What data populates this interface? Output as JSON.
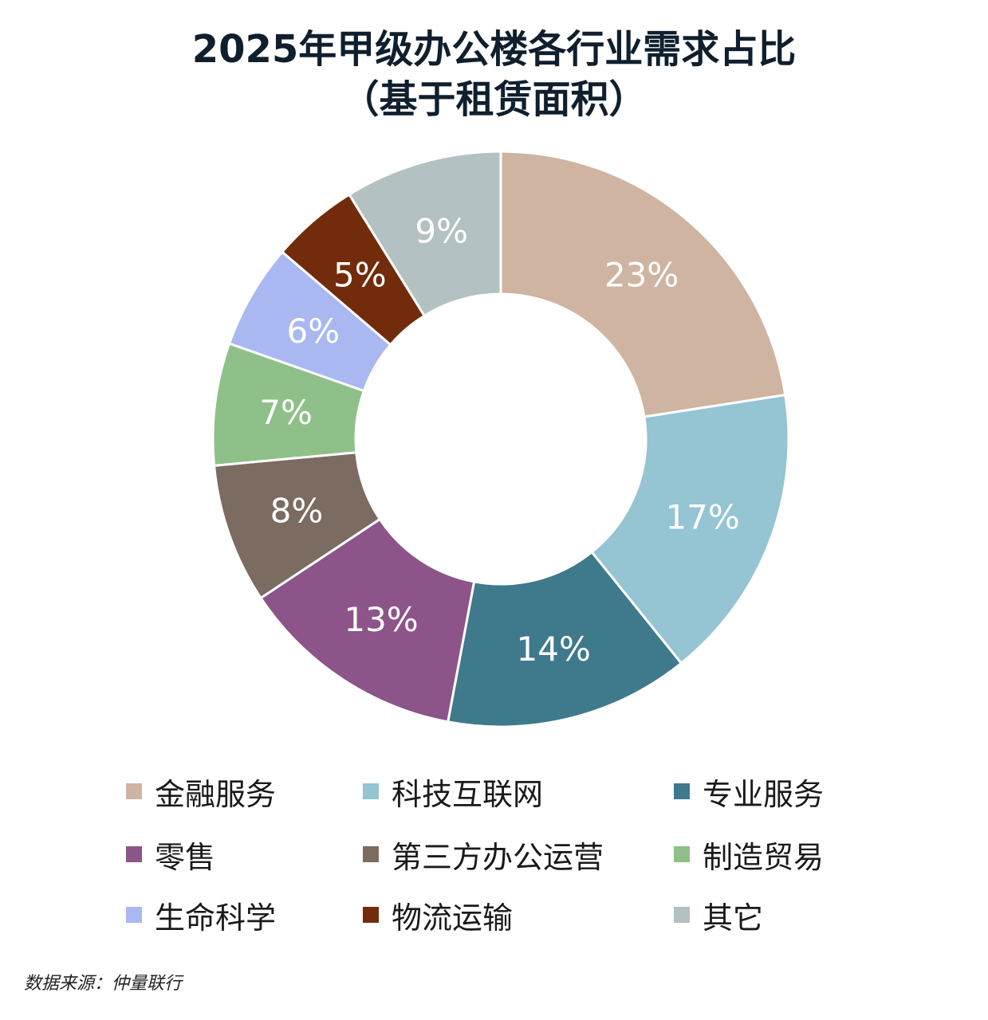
{
  "chart_data": {
    "type": "pie",
    "donut": true,
    "title": "2025年甲级办公楼各行业需求占比",
    "subtitle": "（基于租赁面积）",
    "legend_position": "bottom",
    "slices": [
      {
        "name": "金融服务",
        "value": 23,
        "label": "23%",
        "color": "#cfb4a2"
      },
      {
        "name": "科技互联网",
        "value": 17,
        "label": "17%",
        "color": "#95c4d3"
      },
      {
        "name": "专业服务",
        "value": 14,
        "label": "14%",
        "color": "#3f798c"
      },
      {
        "name": "零售",
        "value": 13,
        "label": "13%",
        "color": "#8c5489"
      },
      {
        "name": "第三方办公运营",
        "value": 8,
        "label": "8%",
        "color": "#7b6b60"
      },
      {
        "name": "制造贸易",
        "value": 7,
        "label": "7%",
        "color": "#8fc08a"
      },
      {
        "name": "生命科学",
        "value": 6,
        "label": "6%",
        "color": "#a9b8f0"
      },
      {
        "name": "物流运输",
        "value": 5,
        "label": "5%",
        "color": "#722c0b"
      },
      {
        "name": "其它",
        "value": 9,
        "label": "9%",
        "color": "#b4c1c2"
      }
    ]
  },
  "source": "数据来源：仲量联行"
}
